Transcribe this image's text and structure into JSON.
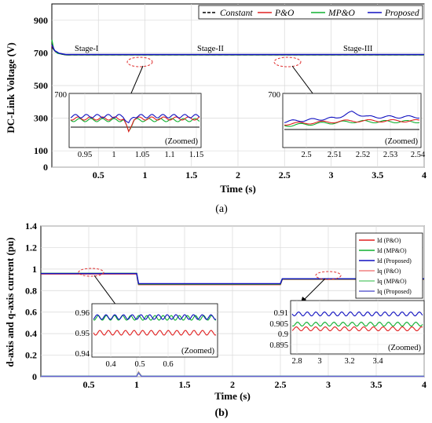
{
  "panel_labels": [
    "(a)",
    "(b)"
  ],
  "chart_data": [
    {
      "type": "line",
      "xlabel": "Time (s)",
      "ylabel": "DC-Link Voltage (V)",
      "xlim": [
        0,
        4
      ],
      "ylim": [
        0,
        1000
      ],
      "xticks": [
        "0.5",
        "1",
        "1.5",
        "2",
        "2.5",
        "3",
        "3.5",
        "4"
      ],
      "yticks": [
        "0",
        "100",
        "300",
        "500",
        "700",
        "900"
      ],
      "grid": true,
      "legend_position": "top-right",
      "annotations": [
        "Stage-I",
        "Stage-II",
        "Stage-III"
      ],
      "series": [
        {
          "name": "Constant",
          "color": "#000000",
          "style": "dashed",
          "x": [
            0,
            0.03,
            0.08,
            0.15,
            4
          ],
          "y": [
            740,
            710,
            695,
            688,
            688
          ]
        },
        {
          "name": "P&O",
          "color": "#e02020",
          "style": "solid",
          "x": [
            0,
            0.03,
            0.08,
            0.15,
            4
          ],
          "y": [
            745,
            712,
            696,
            688,
            688
          ]
        },
        {
          "name": "MP&O",
          "color": "#10b030",
          "style": "solid",
          "x": [
            0,
            0.02,
            0.06,
            0.15,
            4
          ],
          "y": [
            780,
            720,
            698,
            688,
            688
          ]
        },
        {
          "name": "Proposed",
          "color": "#1010c0",
          "style": "solid",
          "x": [
            0,
            0.03,
            0.08,
            0.15,
            4
          ],
          "y": [
            750,
            714,
            697,
            690,
            690
          ]
        }
      ],
      "insets": [
        {
          "label": "(Zoomed)",
          "xticks": [
            "0.95",
            "1",
            "1.05",
            "1.1",
            "1.15"
          ],
          "yticks": [
            "700"
          ]
        },
        {
          "label": "(Zoomed)",
          "xticks": [
            "2.5",
            "2.51",
            "2.52",
            "2.53",
            "2.54"
          ],
          "yticks": [
            "700"
          ]
        }
      ]
    },
    {
      "type": "line",
      "xlabel": "Time (s)",
      "ylabel": "d-axis and q-axis current (pu)",
      "xlim": [
        0,
        4
      ],
      "ylim": [
        0,
        1.4
      ],
      "xticks": [
        "0.5",
        "1",
        "1.5",
        "2",
        "2.5",
        "3",
        "3.5",
        "4"
      ],
      "yticks": [
        "0",
        "0.2",
        "0.4",
        "0.6",
        "0.8",
        "1",
        "1.2",
        "1.4"
      ],
      "grid": true,
      "legend_position": "right",
      "series": [
        {
          "name": "Id (P&O)",
          "color": "#e02020",
          "style": "solid",
          "x": [
            0,
            1.0,
            1.02,
            2.5,
            2.52,
            4
          ],
          "y": [
            0.955,
            0.955,
            0.855,
            0.855,
            0.905,
            0.905
          ]
        },
        {
          "name": "Id (MP&O)",
          "color": "#10b030",
          "style": "solid",
          "x": [
            0,
            1.0,
            1.02,
            2.5,
            2.52,
            4
          ],
          "y": [
            0.96,
            0.96,
            0.86,
            0.86,
            0.908,
            0.908
          ]
        },
        {
          "name": "Id (Proposed)",
          "color": "#1010c0",
          "style": "solid",
          "x": [
            0,
            1.0,
            1.02,
            2.5,
            2.52,
            4
          ],
          "y": [
            0.958,
            0.958,
            0.865,
            0.865,
            0.91,
            0.91
          ]
        },
        {
          "name": "Iq (P&O)",
          "color": "#f08080",
          "style": "solid",
          "x": [
            0,
            1.0,
            1.02,
            1.05,
            4
          ],
          "y": [
            0.005,
            0.005,
            0.045,
            0.005,
            0.005
          ]
        },
        {
          "name": "Iq (MP&O)",
          "color": "#70d080",
          "style": "solid",
          "x": [
            0,
            1.0,
            1.02,
            1.05,
            4
          ],
          "y": [
            0.006,
            0.006,
            0.04,
            0.006,
            0.006
          ]
        },
        {
          "name": "Iq (Proposed)",
          "color": "#6060d0",
          "style": "solid",
          "x": [
            0,
            1.0,
            1.02,
            1.05,
            4
          ],
          "y": [
            0.004,
            0.004,
            0.035,
            0.004,
            0.004
          ]
        }
      ],
      "insets": [
        {
          "label": "(Zoomed)",
          "xticks": [
            "0.4",
            "0.5",
            "0.6"
          ],
          "yticks": [
            "0.96",
            "0.95",
            "0.94"
          ]
        },
        {
          "label": "(Zoomed)",
          "xticks": [
            "2.8",
            "3",
            "3.2",
            "3.4"
          ],
          "yticks": [
            "0.91",
            "0.905",
            "0.9",
            "0.895"
          ]
        }
      ]
    }
  ]
}
